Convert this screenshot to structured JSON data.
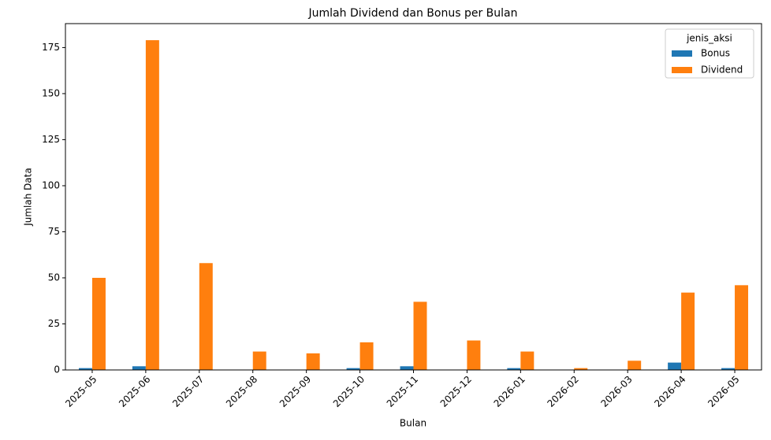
{
  "chart_data": {
    "type": "bar",
    "title": "Jumlah Dividend dan Bonus per Bulan",
    "x_label": "Bulan",
    "y_label": "Jumlah Data",
    "categories": [
      "2025-05",
      "2025-06",
      "2025-07",
      "2025-08",
      "2025-09",
      "2025-10",
      "2025-11",
      "2025-12",
      "2026-01",
      "2026-02",
      "2026-03",
      "2026-04",
      "2026-05"
    ],
    "series": [
      {
        "name": "Bonus",
        "color": "#1f77b4",
        "values": [
          1,
          2,
          0,
          0,
          0,
          1,
          2,
          0,
          1,
          0,
          0,
          4,
          1
        ]
      },
      {
        "name": "Dividend",
        "color": "#ff7f0e",
        "values": [
          50,
          179,
          58,
          10,
          9,
          15,
          37,
          16,
          10,
          1,
          5,
          42,
          46
        ]
      }
    ],
    "legend_title": "jenis_aksi",
    "legend": "upper right",
    "ylim": [
      0,
      188
    ],
    "yticks": [
      0,
      25,
      50,
      75,
      100,
      125,
      150,
      175
    ],
    "grid": false
  }
}
